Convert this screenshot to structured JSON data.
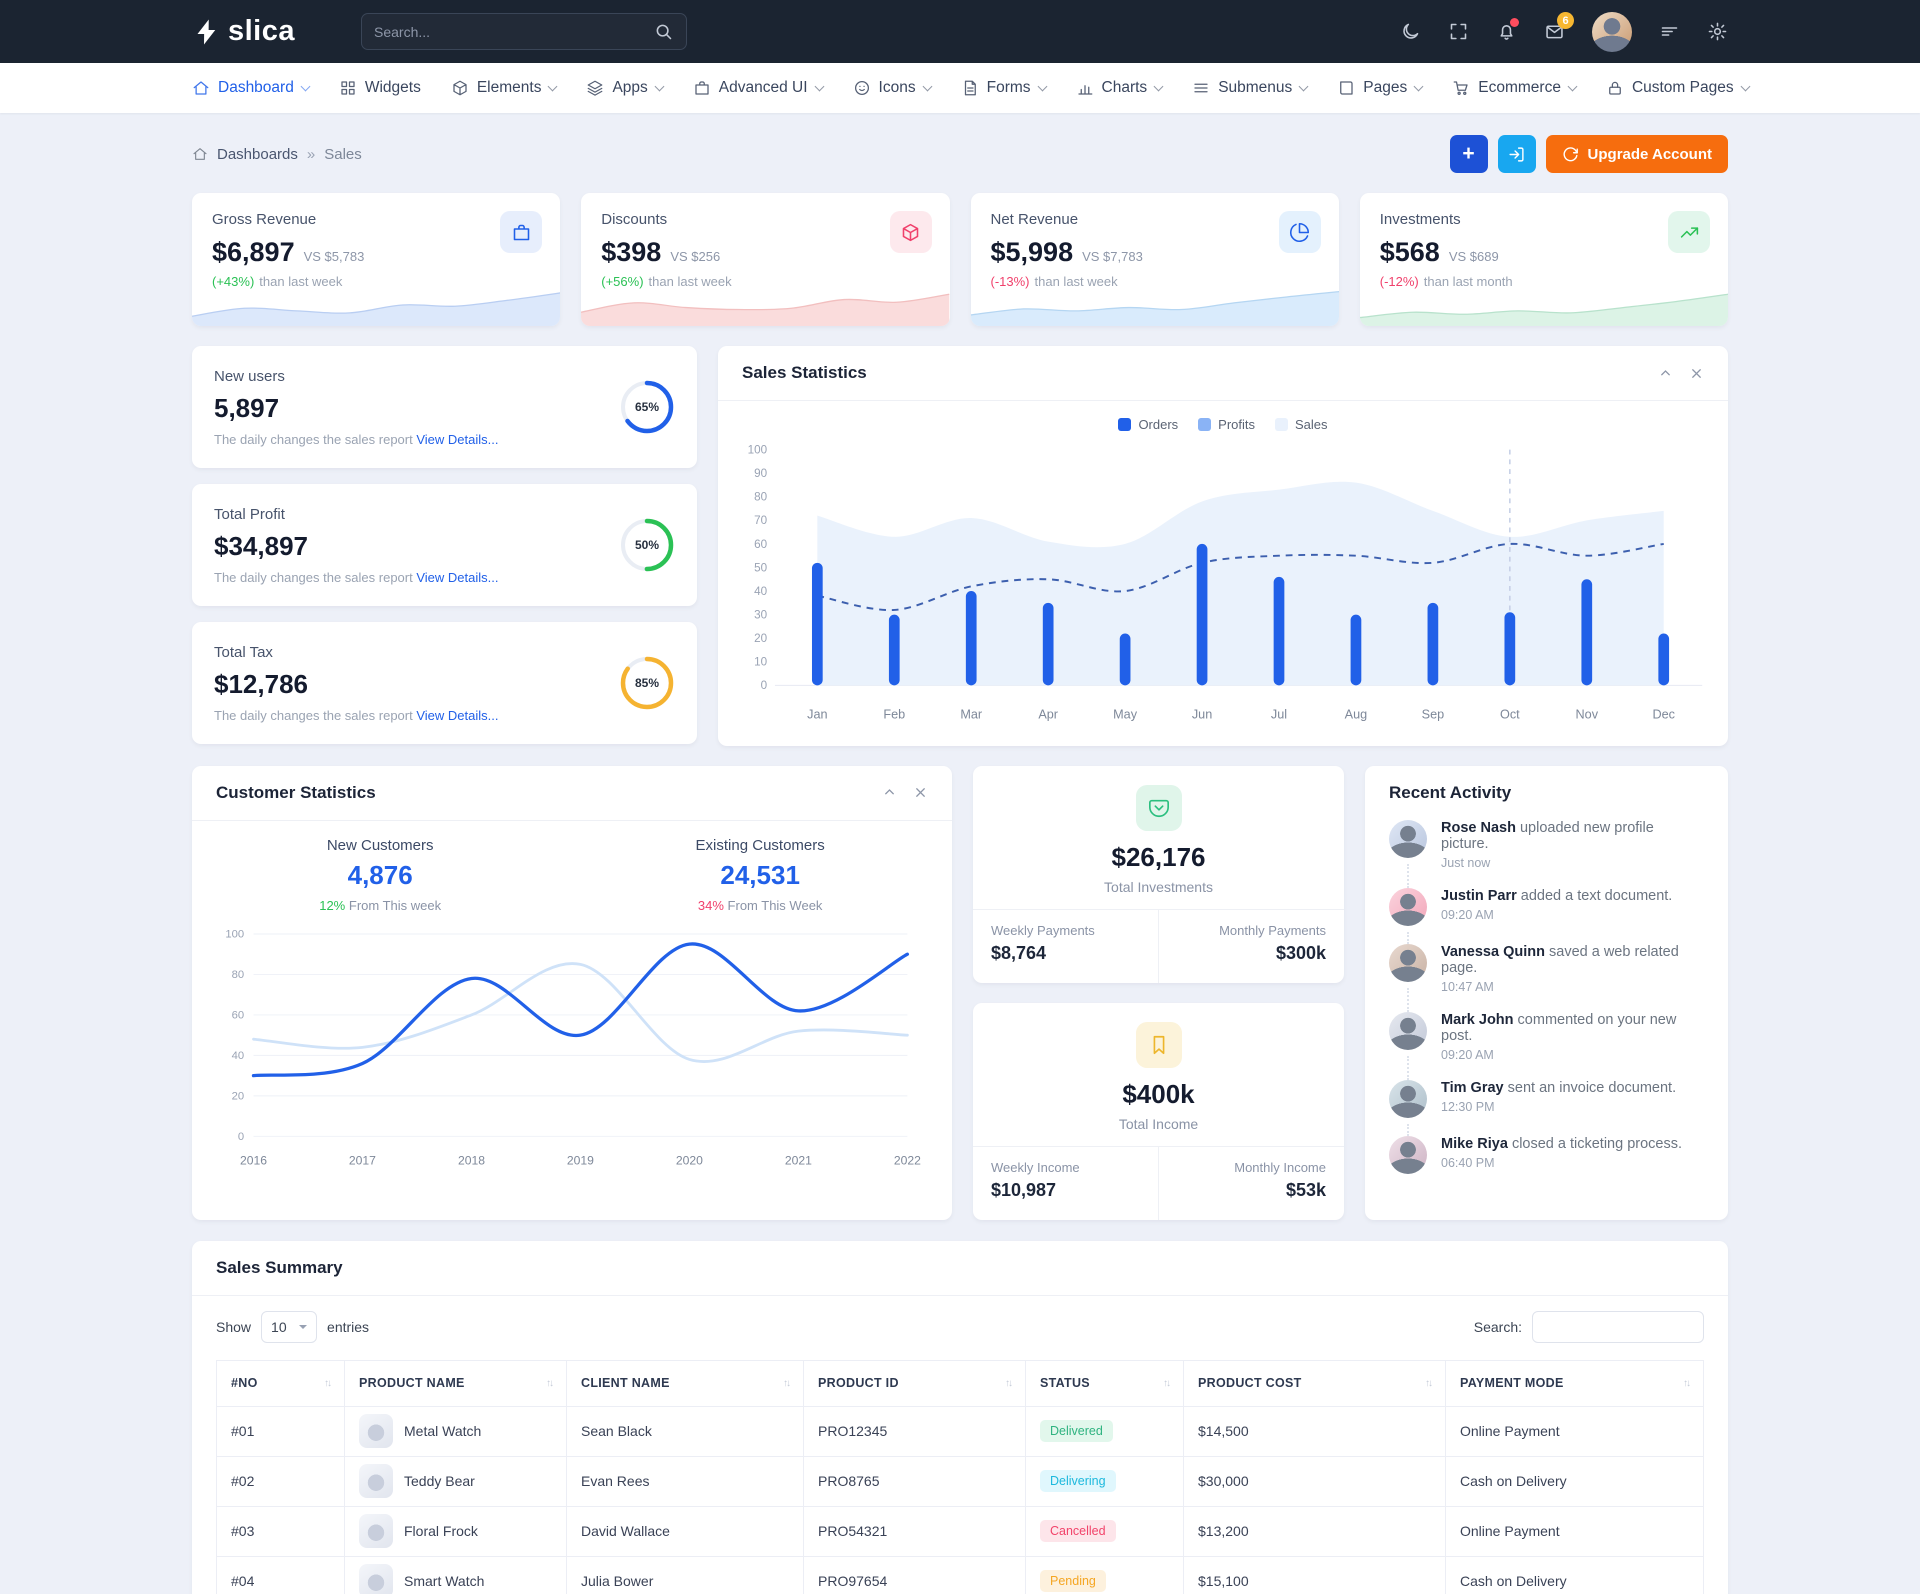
{
  "colors": {
    "primary": "#2160e8",
    "info": "#18a7f0",
    "orange": "#f66d0e",
    "success": "#2bc155",
    "danger": "#f0416c",
    "warning": "#f5b331",
    "topbar_bg": "#1b2431",
    "page_bg": "#edf0f8"
  },
  "topbar": {
    "logo_text": "slica",
    "search_placeholder": "Search...",
    "mail_badge": "6"
  },
  "nav": {
    "items": [
      {
        "label": "Dashboard",
        "icon": "home-icon",
        "chevron": true,
        "active": true
      },
      {
        "label": "Widgets",
        "icon": "grid-icon",
        "chevron": false
      },
      {
        "label": "Elements",
        "icon": "box-icon",
        "chevron": true
      },
      {
        "label": "Apps",
        "icon": "layers-icon",
        "chevron": true
      },
      {
        "label": "Advanced UI",
        "icon": "briefcase-icon",
        "chevron": true
      },
      {
        "label": "Icons",
        "icon": "smiley-icon",
        "chevron": true
      },
      {
        "label": "Forms",
        "icon": "file-icon",
        "chevron": true
      },
      {
        "label": "Charts",
        "icon": "bar-chart-icon",
        "chevron": true
      },
      {
        "label": "Submenus",
        "icon": "menu-icon",
        "chevron": true
      },
      {
        "label": "Pages",
        "icon": "book-icon",
        "chevron": true
      },
      {
        "label": "Ecommerce",
        "icon": "cart-icon",
        "chevron": true
      },
      {
        "label": "Custom Pages",
        "icon": "lock-icon",
        "chevron": true
      }
    ]
  },
  "breadcrumb": {
    "root": "Dashboards",
    "separator": "»",
    "current": "Sales"
  },
  "header_actions": {
    "plus": "+",
    "upgrade": "Upgrade Account"
  },
  "kpis": [
    {
      "title": "Gross Revenue",
      "value": "$6,897",
      "vs": "VS $5,783",
      "delta": "(+43%)",
      "delta_note": "than last week",
      "delta_color": "#2bc155",
      "icon": "briefcase-icon",
      "icon_color": "#2160e8",
      "icon_bg": "#e7eefc"
    },
    {
      "title": "Discounts",
      "value": "$398",
      "vs": "VS $256",
      "delta": "(+56%)",
      "delta_note": "than last week",
      "delta_color": "#2bc155",
      "icon": "package-icon",
      "icon_color": "#f0416c",
      "icon_bg": "#fde9ed"
    },
    {
      "title": "Net Revenue",
      "value": "$5,998",
      "vs": "VS $7,783",
      "delta": "(-13%)",
      "delta_note": "than last week",
      "delta_color": "#f0416c",
      "icon": "pie-chart-icon",
      "icon_color": "#2160e8",
      "icon_bg": "#e4f1fd"
    },
    {
      "title": "Investments",
      "value": "$568",
      "vs": "VS $689",
      "delta": "(-12%)",
      "delta_note": "than last month",
      "delta_color": "#f0416c",
      "icon": "trending-up-icon",
      "icon_color": "#2bc155",
      "icon_bg": "#e2f6ec"
    }
  ],
  "stat_cards": [
    {
      "title": "New users",
      "value": "5,897",
      "desc": "The daily changes the sales report",
      "link": "View Details...",
      "percent": 65,
      "label": "65%",
      "ring_color": "#2160e8"
    },
    {
      "title": "Total Profit",
      "value": "$34,897",
      "desc": "The daily changes the sales report",
      "link": "View Details...",
      "percent": 50,
      "label": "50%",
      "ring_color": "#2bc155"
    },
    {
      "title": "Total Tax",
      "value": "$12,786",
      "desc": "The daily changes the sales report",
      "link": "View Details...",
      "percent": 85,
      "label": "85%",
      "ring_color": "#f5b331"
    }
  ],
  "sales_statistics": {
    "title": "Sales Statistics",
    "legend": [
      {
        "label": "Orders",
        "color": "#2160e8"
      },
      {
        "label": "Profits",
        "color": "#8ab3f5"
      },
      {
        "label": "Sales",
        "color": "#e9f1fc"
      }
    ]
  },
  "customer_statistics": {
    "title": "Customer Statistics",
    "groups": [
      {
        "label": "New Customers",
        "value": "4,876",
        "pct": "12%",
        "pct_color": "#2bc155",
        "note": "From This week"
      },
      {
        "label": "Existing Customers",
        "value": "24,531",
        "pct": "34%",
        "pct_color": "#f0416c",
        "note": "From This Week"
      }
    ]
  },
  "investments_card": {
    "value": "$26,176",
    "label": "Total Investments",
    "left_label": "Weekly Payments",
    "left_value": "$8,764",
    "right_label": "Monthly Payments",
    "right_value": "$300k",
    "icon": "pocket-icon",
    "icon_color": "#2bbf7f",
    "icon_bg": "#e0f5ea"
  },
  "income_card": {
    "value": "$400k",
    "label": "Total Income",
    "left_label": "Weekly Income",
    "left_value": "$10,987",
    "right_label": "Monthly Income",
    "right_value": "$53k",
    "icon": "bookmark-icon",
    "icon_color": "#edb62c",
    "icon_bg": "#fcf3da"
  },
  "recent_activity": {
    "title": "Recent Activity",
    "items": [
      {
        "name": "Rose Nash",
        "text": "uploaded new profile picture.",
        "time": "Just now"
      },
      {
        "name": "Justin Parr",
        "text": "added a text document.",
        "time": "09:20 AM"
      },
      {
        "name": "Vanessa Quinn",
        "text": "saved a web related page.",
        "time": "10:47 AM"
      },
      {
        "name": "Mark John",
        "text": "commented on your new post.",
        "time": "09:20 AM"
      },
      {
        "name": "Tim Gray",
        "text": "sent an invoice document.",
        "time": "12:30 PM"
      },
      {
        "name": "Mike Riya",
        "text": "closed a ticketing process.",
        "time": "06:40 PM"
      }
    ]
  },
  "sales_summary": {
    "title": "Sales Summary",
    "show_label": "Show",
    "page_size": "10",
    "entries_label": "entries",
    "search_label": "Search:",
    "columns": [
      "#NO",
      "PRODUCT NAME",
      "CLIENT NAME",
      "PRODUCT ID",
      "STATUS",
      "PRODUCT COST",
      "PAYMENT MODE"
    ],
    "rows": [
      {
        "no": "#01",
        "product": "Metal Watch",
        "client": "Sean Black",
        "product_id": "PRO12345",
        "status": "Delivered",
        "status_key": "delivered",
        "cost": "$14,500",
        "payment": "Online Payment"
      },
      {
        "no": "#02",
        "product": "Teddy Bear",
        "client": "Evan Rees",
        "product_id": "PRO8765",
        "status": "Delivering",
        "status_key": "delivering",
        "cost": "$30,000",
        "payment": "Cash on Delivery"
      },
      {
        "no": "#03",
        "product": "Floral Frock",
        "client": "David Wallace",
        "product_id": "PRO54321",
        "status": "Cancelled",
        "status_key": "cancelled",
        "cost": "$13,200",
        "payment": "Online Payment"
      },
      {
        "no": "#04",
        "product": "Smart Watch",
        "client": "Julia Bower",
        "product_id": "PRO97654",
        "status": "Pending",
        "status_key": "pending",
        "cost": "$15,100",
        "payment": "Cash on Delivery"
      }
    ]
  },
  "chart_data": [
    {
      "id": "spark-gross",
      "type": "sparkline",
      "values": [
        18,
        42,
        34,
        28,
        52,
        48,
        66,
        88
      ],
      "fill": "#dce8fb",
      "stroke": "#b9cef2"
    },
    {
      "id": "spark-discounts",
      "type": "sparkline",
      "values": [
        30,
        58,
        44,
        38,
        42,
        68,
        60,
        84
      ],
      "fill": "#fadcdc",
      "stroke": "#f2bfbf"
    },
    {
      "id": "spark-net",
      "type": "sparkline",
      "values": [
        22,
        40,
        34,
        44,
        38,
        58,
        76,
        92
      ],
      "fill": "#d9ebfc",
      "stroke": "#b5d6f2"
    },
    {
      "id": "spark-invest",
      "type": "sparkline",
      "values": [
        14,
        30,
        24,
        34,
        28,
        44,
        62,
        84
      ],
      "fill": "#dcf3e6",
      "stroke": "#b8e2cc"
    },
    {
      "id": "sales-statistics",
      "type": "combo",
      "title": "Sales Statistics",
      "categories": [
        "Jan",
        "Feb",
        "Mar",
        "Apr",
        "May",
        "Jun",
        "Jul",
        "Aug",
        "Sep",
        "Oct",
        "Nov",
        "Dec"
      ],
      "ylim": [
        0,
        100
      ],
      "ytick_step": 10,
      "crosshair_index": 9,
      "series": [
        {
          "name": "Sales",
          "type": "area",
          "color": "#e9f1fc",
          "values": [
            72,
            63,
            71,
            61,
            60,
            78,
            83,
            86,
            74,
            63,
            70,
            74
          ]
        },
        {
          "name": "Profits",
          "type": "dashed-line",
          "color": "#3c5fae",
          "values": [
            38,
            32,
            42,
            45,
            40,
            52,
            55,
            55,
            52,
            60,
            55,
            60
          ]
        },
        {
          "name": "Orders",
          "type": "bar",
          "color": "#2160e8",
          "values": [
            52,
            30,
            40,
            35,
            22,
            60,
            46,
            30,
            35,
            31,
            45,
            22
          ]
        }
      ]
    },
    {
      "id": "customer-statistics",
      "type": "lines",
      "title": "Customer Statistics",
      "x": [
        "2016",
        "2017",
        "2018",
        "2019",
        "2020",
        "2021",
        "2022"
      ],
      "ylim": [
        0,
        100
      ],
      "ytick_step": 20,
      "grid": true,
      "series": [
        {
          "name": "Existing Customers",
          "color": "#cfe2f8",
          "width": 3,
          "values": [
            48,
            44,
            60,
            85,
            38,
            52,
            50
          ]
        },
        {
          "name": "New Customers",
          "color": "#2160e8",
          "width": 3.5,
          "values": [
            30,
            36,
            78,
            50,
            95,
            62,
            90
          ]
        }
      ]
    }
  ]
}
